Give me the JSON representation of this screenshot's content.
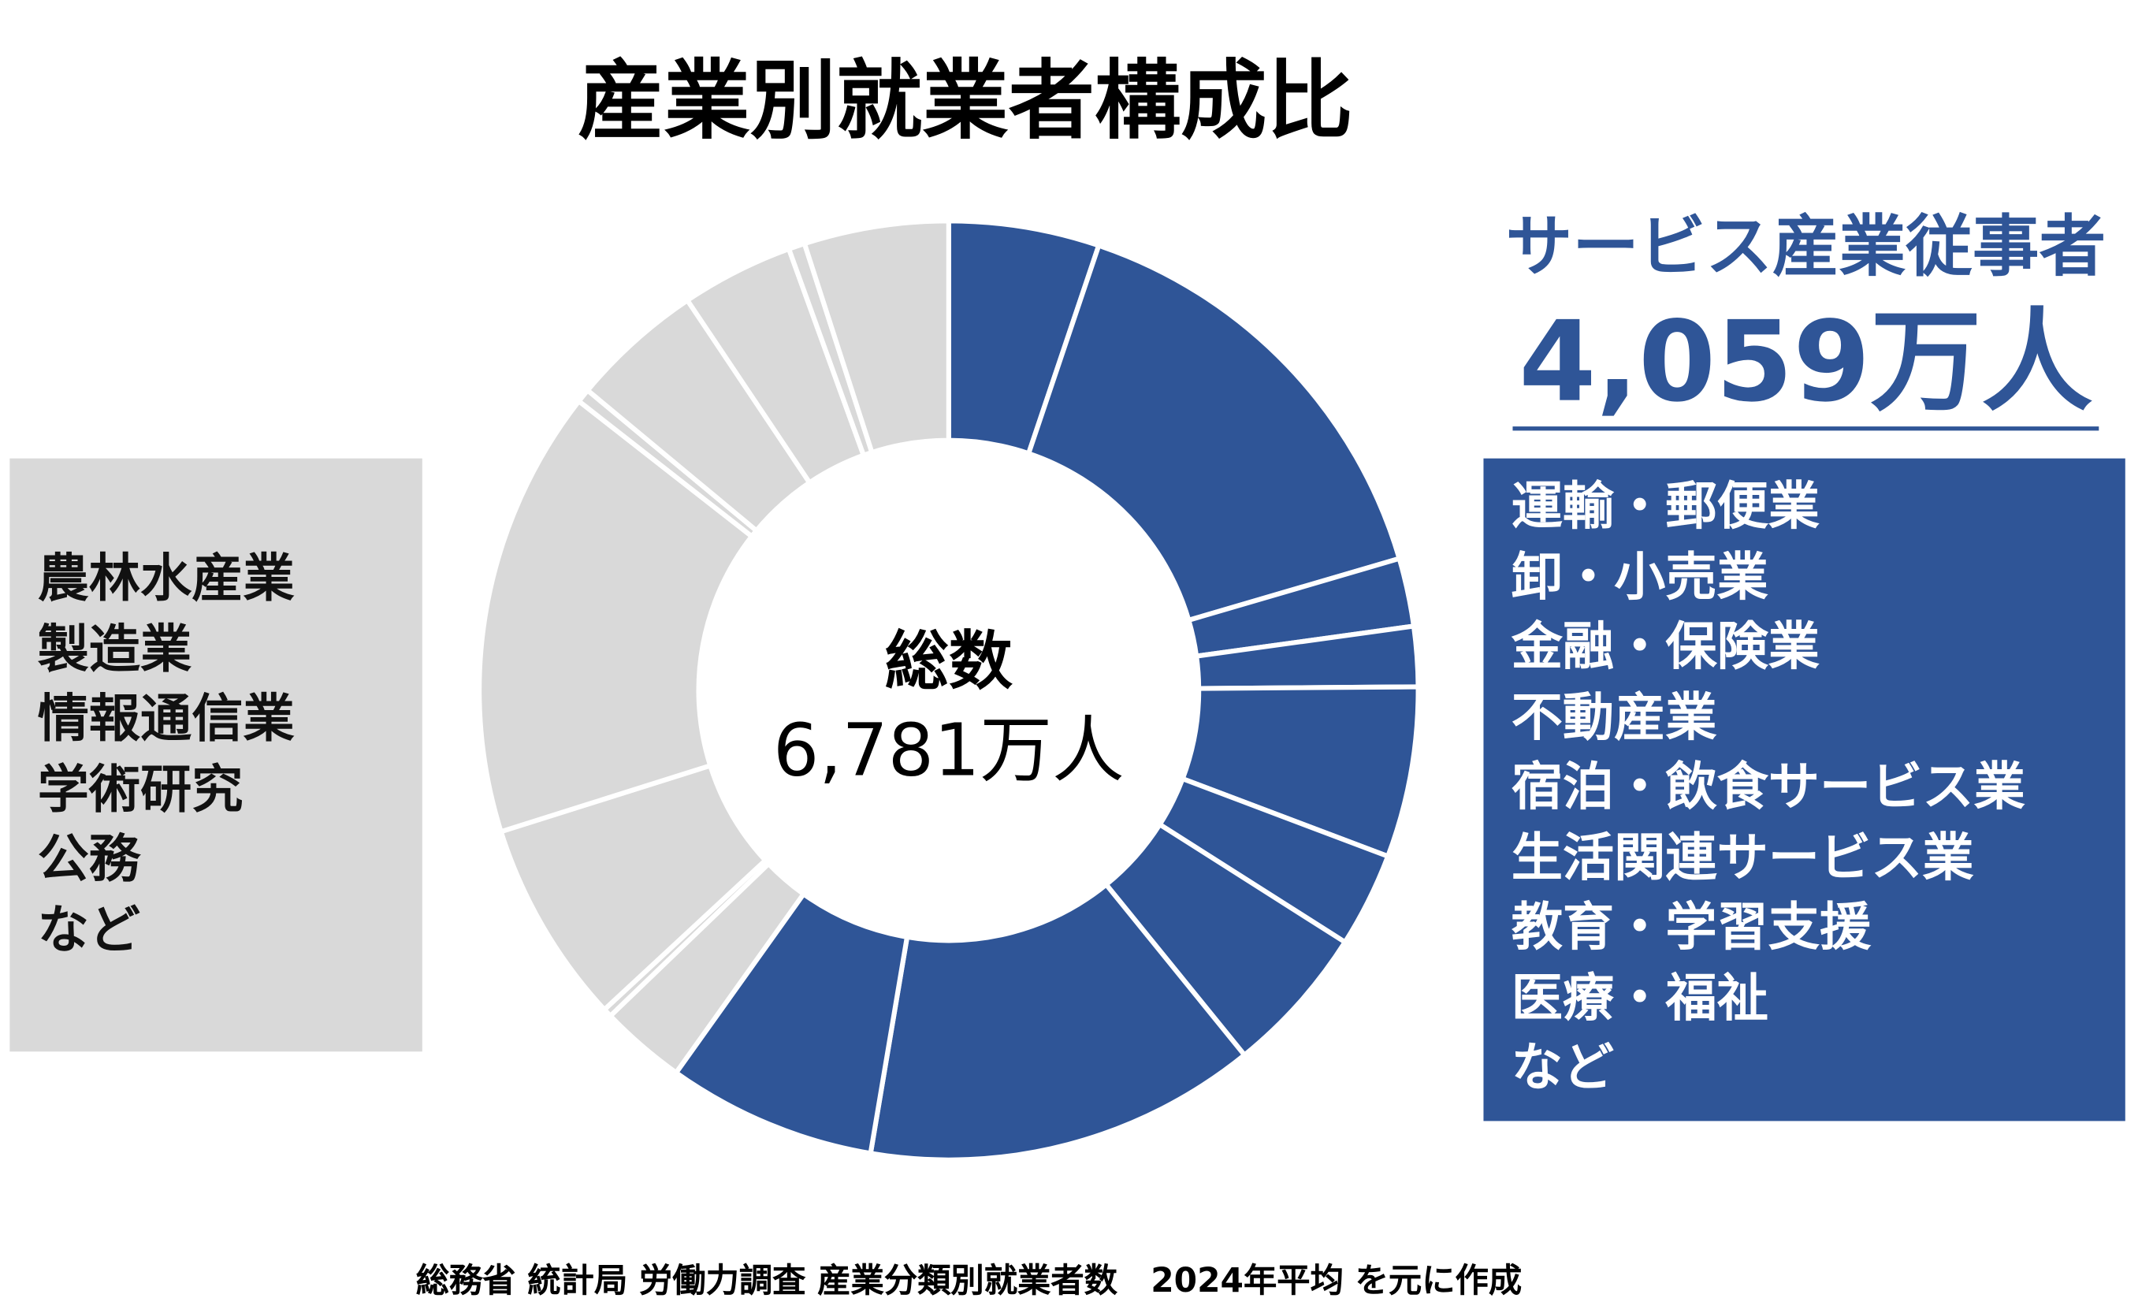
{
  "chart_data": {
    "type": "pie",
    "donut": true,
    "title": "産業別就業者構成比",
    "center_label": "総数",
    "center_value": "6,781万人",
    "unit": "万人",
    "start": "top",
    "direction": "clockwise",
    "colors": {
      "service": "#2f5597",
      "other": "#d9d9d9",
      "separator": "#ffffff"
    },
    "slices": [
      {
        "group": "service",
        "value": 351
      },
      {
        "group": "service",
        "value": 1037
      },
      {
        "group": "service",
        "value": 159
      },
      {
        "group": "service",
        "value": 140
      },
      {
        "group": "service",
        "value": 398
      },
      {
        "group": "service",
        "value": 221
      },
      {
        "group": "service",
        "value": 349
      },
      {
        "group": "service",
        "value": 916
      },
      {
        "group": "service",
        "value": 488
      },
      {
        "group": "other",
        "value": 200
      },
      {
        "group": "other",
        "value": 20
      },
      {
        "group": "other",
        "value": 477
      },
      {
        "group": "other",
        "value": 1046
      },
      {
        "group": "other",
        "value": 32
      },
      {
        "group": "other",
        "value": 310
      },
      {
        "group": "other",
        "value": 262
      },
      {
        "group": "other",
        "value": 38
      },
      {
        "group": "other",
        "value": 337
      }
    ]
  },
  "service_callout": {
    "label": "サービス産業従事者",
    "value": "4,059万人",
    "items": [
      "運輸・郵便業",
      "卸・小売業",
      "金融・保険業",
      "不動産業",
      "宿泊・飲食サービス業",
      "生活関連サービス業",
      "教育・学習支援",
      "医療・福祉",
      "など"
    ]
  },
  "other_callout": {
    "items": [
      "農林水産業",
      "製造業",
      "情報通信業",
      "学術研究",
      "公務",
      "など"
    ]
  },
  "footer": "総務省 統計局 労働力調査 産業分類別就業者数　2024年平均 を元に作成"
}
